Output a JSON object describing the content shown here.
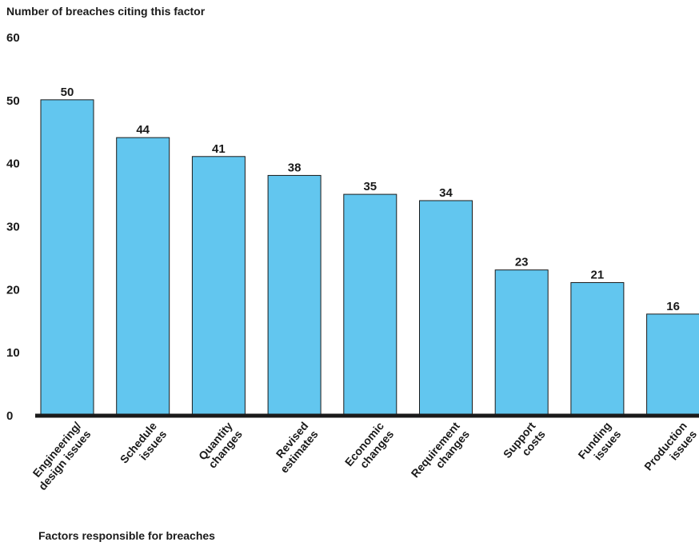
{
  "chart_data": {
    "type": "bar",
    "ylabel": "Number of breaches citing this factor",
    "xlabel": "Factors responsible for breaches",
    "ylim": [
      0,
      60
    ],
    "yticks": [
      0,
      10,
      20,
      30,
      40,
      50,
      60
    ],
    "grid": false,
    "bar_color": "#62c6ef",
    "categories": [
      [
        "Engineering/",
        "design issues"
      ],
      [
        "Schedule",
        "issues"
      ],
      [
        "Quantity",
        "changes"
      ],
      [
        "Revised",
        "estimates"
      ],
      [
        "Economic",
        "changes"
      ],
      [
        "Requirement",
        "changes"
      ],
      [
        "Support",
        "costs"
      ],
      [
        "Funding",
        "issues"
      ],
      [
        "Production",
        "issues"
      ]
    ],
    "values": [
      50,
      44,
      41,
      38,
      35,
      34,
      23,
      21,
      16
    ]
  }
}
